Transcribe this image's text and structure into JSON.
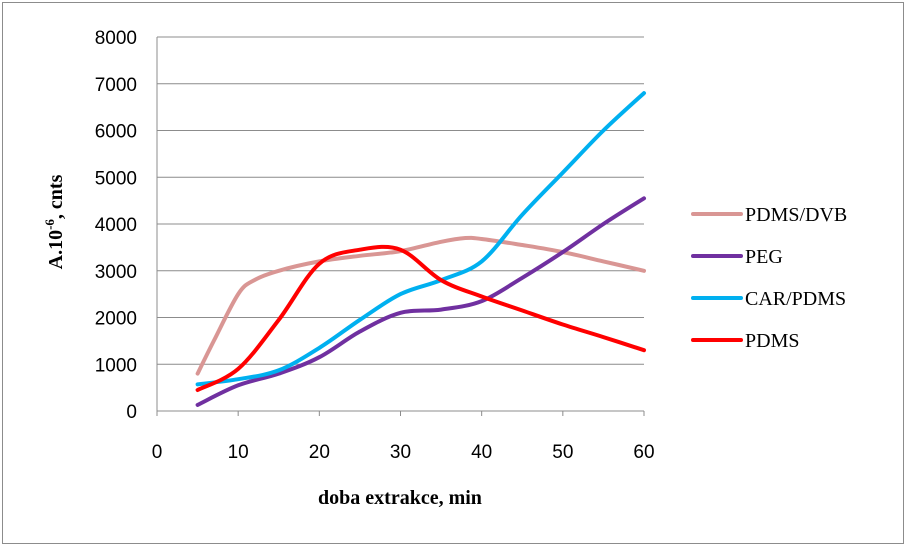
{
  "chart_data": {
    "type": "line",
    "xlabel": "doba extrakce, min",
    "ylabel": "A.10",
    "ylabel_sup": "-6",
    "ylabel_suffix": ", cnts",
    "xlim": [
      0,
      60
    ],
    "ylim": [
      0,
      8000
    ],
    "xticks": [
      0,
      10,
      20,
      30,
      40,
      50,
      60
    ],
    "yticks": [
      0,
      1000,
      2000,
      3000,
      4000,
      5000,
      6000,
      7000,
      8000
    ],
    "grid": "horizontal",
    "legend_position": "right",
    "series": [
      {
        "name": "PDMS/DVB",
        "color": "#d99694",
        "x": [
          5,
          7,
          10,
          12,
          15,
          20,
          25,
          30,
          35,
          38,
          40,
          45,
          50,
          55,
          60
        ],
        "y": [
          800,
          1500,
          2500,
          2800,
          3000,
          3200,
          3320,
          3420,
          3620,
          3700,
          3680,
          3550,
          3400,
          3200,
          3000
        ]
      },
      {
        "name": "PEG",
        "color": "#7030a0",
        "x": [
          5,
          10,
          15,
          20,
          25,
          30,
          35,
          40,
          45,
          50,
          55,
          60
        ],
        "y": [
          130,
          550,
          800,
          1150,
          1700,
          2100,
          2170,
          2350,
          2850,
          3400,
          4000,
          4550
        ]
      },
      {
        "name": "CAR/PDMS",
        "color": "#00b0f0",
        "x": [
          5,
          10,
          15,
          20,
          25,
          30,
          35,
          40,
          45,
          50,
          55,
          60
        ],
        "y": [
          570,
          680,
          870,
          1350,
          1950,
          2500,
          2800,
          3200,
          4200,
          5100,
          6000,
          6800
        ]
      },
      {
        "name": "PDMS",
        "color": "#ff0000",
        "x": [
          5,
          10,
          15,
          20,
          25,
          30,
          35,
          40,
          45,
          50,
          55,
          60
        ],
        "y": [
          450,
          900,
          1950,
          3150,
          3450,
          3450,
          2800,
          2450,
          2150,
          1850,
          1580,
          1300
        ]
      }
    ]
  }
}
